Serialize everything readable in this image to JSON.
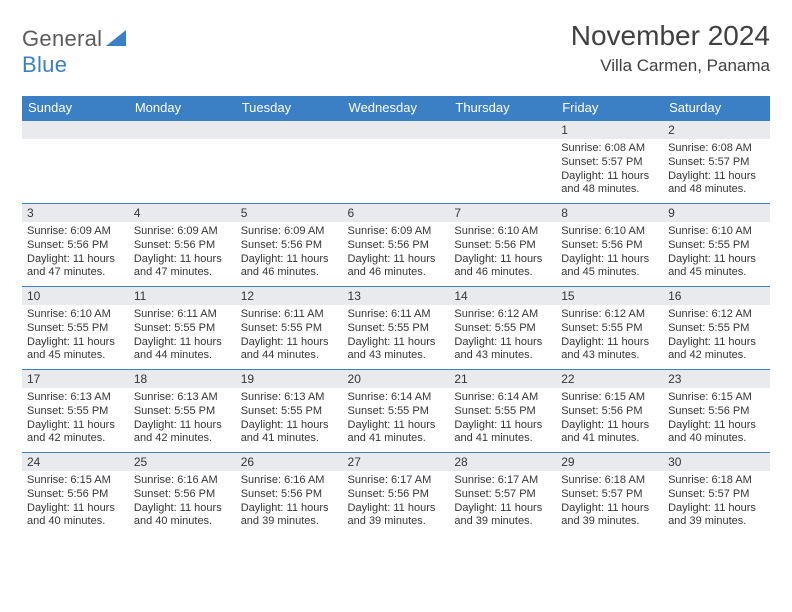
{
  "logo": {
    "text1": "General",
    "text2": "Blue"
  },
  "title": {
    "month": "November 2024",
    "location": "Villa Carmen, Panama"
  },
  "style": {
    "accent_color": "#3b7fc4",
    "header_text_color": "#ffffff",
    "daynum_bg": "#e8eaed",
    "text_color": "#353535",
    "font_family": "Arial",
    "title_fontsize": 28,
    "location_fontsize": 17,
    "header_fontsize": 13,
    "daynum_fontsize": 12,
    "detail_fontsize": 11,
    "columns": 7,
    "rows": 5
  },
  "weekdays": [
    "Sunday",
    "Monday",
    "Tuesday",
    "Wednesday",
    "Thursday",
    "Friday",
    "Saturday"
  ],
  "weeks": [
    [
      null,
      null,
      null,
      null,
      null,
      {
        "n": "1",
        "sr": "6:08 AM",
        "ss": "5:57 PM",
        "dl": "11 hours and 48 minutes."
      },
      {
        "n": "2",
        "sr": "6:08 AM",
        "ss": "5:57 PM",
        "dl": "11 hours and 48 minutes."
      }
    ],
    [
      {
        "n": "3",
        "sr": "6:09 AM",
        "ss": "5:56 PM",
        "dl": "11 hours and 47 minutes."
      },
      {
        "n": "4",
        "sr": "6:09 AM",
        "ss": "5:56 PM",
        "dl": "11 hours and 47 minutes."
      },
      {
        "n": "5",
        "sr": "6:09 AM",
        "ss": "5:56 PM",
        "dl": "11 hours and 46 minutes."
      },
      {
        "n": "6",
        "sr": "6:09 AM",
        "ss": "5:56 PM",
        "dl": "11 hours and 46 minutes."
      },
      {
        "n": "7",
        "sr": "6:10 AM",
        "ss": "5:56 PM",
        "dl": "11 hours and 46 minutes."
      },
      {
        "n": "8",
        "sr": "6:10 AM",
        "ss": "5:56 PM",
        "dl": "11 hours and 45 minutes."
      },
      {
        "n": "9",
        "sr": "6:10 AM",
        "ss": "5:55 PM",
        "dl": "11 hours and 45 minutes."
      }
    ],
    [
      {
        "n": "10",
        "sr": "6:10 AM",
        "ss": "5:55 PM",
        "dl": "11 hours and 45 minutes."
      },
      {
        "n": "11",
        "sr": "6:11 AM",
        "ss": "5:55 PM",
        "dl": "11 hours and 44 minutes."
      },
      {
        "n": "12",
        "sr": "6:11 AM",
        "ss": "5:55 PM",
        "dl": "11 hours and 44 minutes."
      },
      {
        "n": "13",
        "sr": "6:11 AM",
        "ss": "5:55 PM",
        "dl": "11 hours and 43 minutes."
      },
      {
        "n": "14",
        "sr": "6:12 AM",
        "ss": "5:55 PM",
        "dl": "11 hours and 43 minutes."
      },
      {
        "n": "15",
        "sr": "6:12 AM",
        "ss": "5:55 PM",
        "dl": "11 hours and 43 minutes."
      },
      {
        "n": "16",
        "sr": "6:12 AM",
        "ss": "5:55 PM",
        "dl": "11 hours and 42 minutes."
      }
    ],
    [
      {
        "n": "17",
        "sr": "6:13 AM",
        "ss": "5:55 PM",
        "dl": "11 hours and 42 minutes."
      },
      {
        "n": "18",
        "sr": "6:13 AM",
        "ss": "5:55 PM",
        "dl": "11 hours and 42 minutes."
      },
      {
        "n": "19",
        "sr": "6:13 AM",
        "ss": "5:55 PM",
        "dl": "11 hours and 41 minutes."
      },
      {
        "n": "20",
        "sr": "6:14 AM",
        "ss": "5:55 PM",
        "dl": "11 hours and 41 minutes."
      },
      {
        "n": "21",
        "sr": "6:14 AM",
        "ss": "5:55 PM",
        "dl": "11 hours and 41 minutes."
      },
      {
        "n": "22",
        "sr": "6:15 AM",
        "ss": "5:56 PM",
        "dl": "11 hours and 41 minutes."
      },
      {
        "n": "23",
        "sr": "6:15 AM",
        "ss": "5:56 PM",
        "dl": "11 hours and 40 minutes."
      }
    ],
    [
      {
        "n": "24",
        "sr": "6:15 AM",
        "ss": "5:56 PM",
        "dl": "11 hours and 40 minutes."
      },
      {
        "n": "25",
        "sr": "6:16 AM",
        "ss": "5:56 PM",
        "dl": "11 hours and 40 minutes."
      },
      {
        "n": "26",
        "sr": "6:16 AM",
        "ss": "5:56 PM",
        "dl": "11 hours and 39 minutes."
      },
      {
        "n": "27",
        "sr": "6:17 AM",
        "ss": "5:56 PM",
        "dl": "11 hours and 39 minutes."
      },
      {
        "n": "28",
        "sr": "6:17 AM",
        "ss": "5:57 PM",
        "dl": "11 hours and 39 minutes."
      },
      {
        "n": "29",
        "sr": "6:18 AM",
        "ss": "5:57 PM",
        "dl": "11 hours and 39 minutes."
      },
      {
        "n": "30",
        "sr": "6:18 AM",
        "ss": "5:57 PM",
        "dl": "11 hours and 39 minutes."
      }
    ]
  ],
  "labels": {
    "sunrise": "Sunrise:",
    "sunset": "Sunset:",
    "daylight": "Daylight:"
  }
}
